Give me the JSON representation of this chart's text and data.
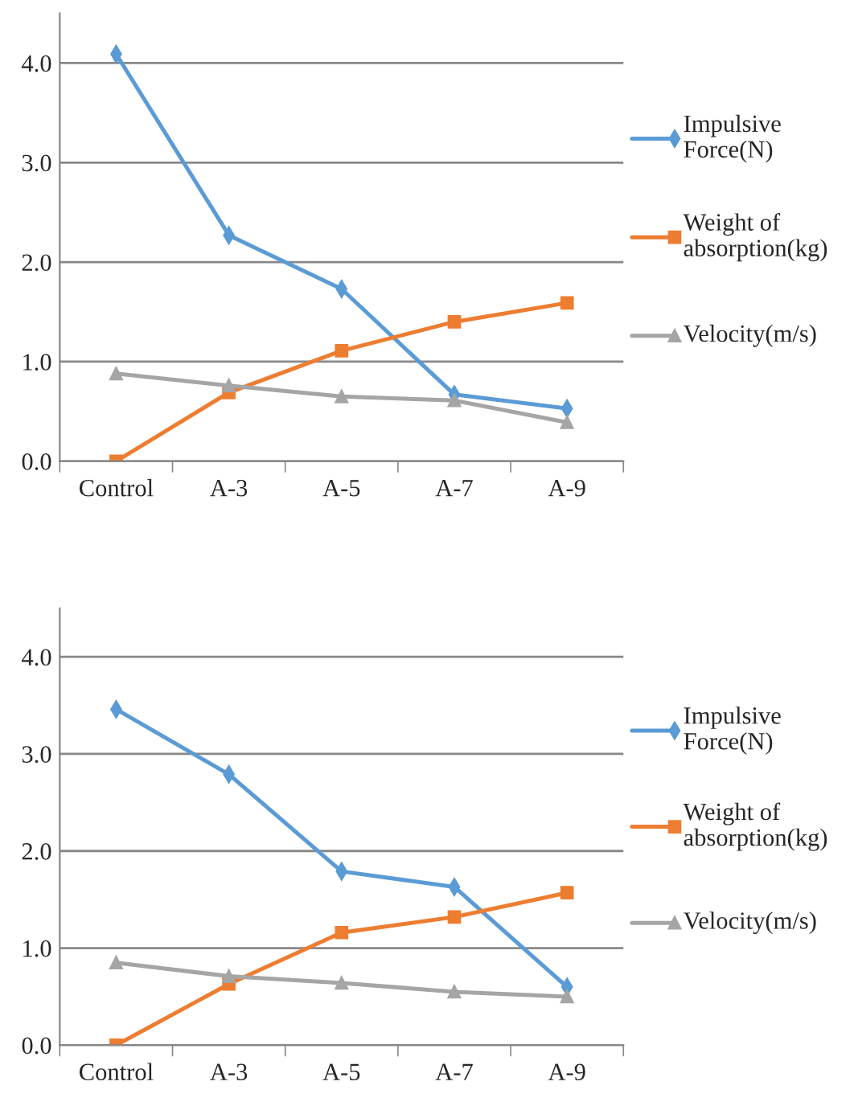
{
  "chart_data": [
    {
      "type": "line",
      "categories": [
        "Control",
        "A-3",
        "A-5",
        "A-7",
        "A-9"
      ],
      "ylim": [
        0,
        4.5
      ],
      "yticks": [
        {
          "value": 0,
          "label": "0.0"
        },
        {
          "value": 1,
          "label": "1.0"
        },
        {
          "value": 2,
          "label": "2.0"
        },
        {
          "value": 3,
          "label": "3.0"
        },
        {
          "value": 4,
          "label": "4.0"
        }
      ],
      "grid": "y",
      "legend": "right",
      "series": [
        {
          "name": "Impulsive Force(N)",
          "color": "#5b9bd5",
          "marker": "diamond",
          "values": [
            4.09,
            2.27,
            1.73,
            0.67,
            0.53
          ]
        },
        {
          "name": "Weight of absorption(kg)",
          "color": "#ed7d31",
          "marker": "square",
          "values": [
            0,
            0.69,
            1.11,
            1.4,
            1.59
          ]
        },
        {
          "name": "Velocity(m/s)",
          "color": "#a5a5a5",
          "marker": "triangle",
          "values": [
            0.88,
            0.76,
            0.65,
            0.61,
            0.39
          ]
        }
      ]
    },
    {
      "type": "line",
      "categories": [
        "Control",
        "A-3",
        "A-5",
        "A-7",
        "A-9"
      ],
      "ylim": [
        0,
        4.5
      ],
      "yticks": [
        {
          "value": 0,
          "label": "0.0"
        },
        {
          "value": 1,
          "label": "1.0"
        },
        {
          "value": 2,
          "label": "2.0"
        },
        {
          "value": 3,
          "label": "3.0"
        },
        {
          "value": 4,
          "label": "4.0"
        }
      ],
      "grid": "y",
      "legend": "right",
      "series": [
        {
          "name": "Impulsive Force(N)",
          "color": "#5b9bd5",
          "marker": "diamond",
          "values": [
            3.46,
            2.79,
            1.79,
            1.63,
            0.6
          ]
        },
        {
          "name": "Weight of absorption(kg)",
          "color": "#ed7d31",
          "marker": "square",
          "values": [
            0,
            0.63,
            1.16,
            1.32,
            1.57
          ]
        },
        {
          "name": "Velocity(m/s)",
          "color": "#a5a5a5",
          "marker": "triangle",
          "values": [
            0.85,
            0.71,
            0.64,
            0.55,
            0.5
          ]
        }
      ]
    }
  ]
}
